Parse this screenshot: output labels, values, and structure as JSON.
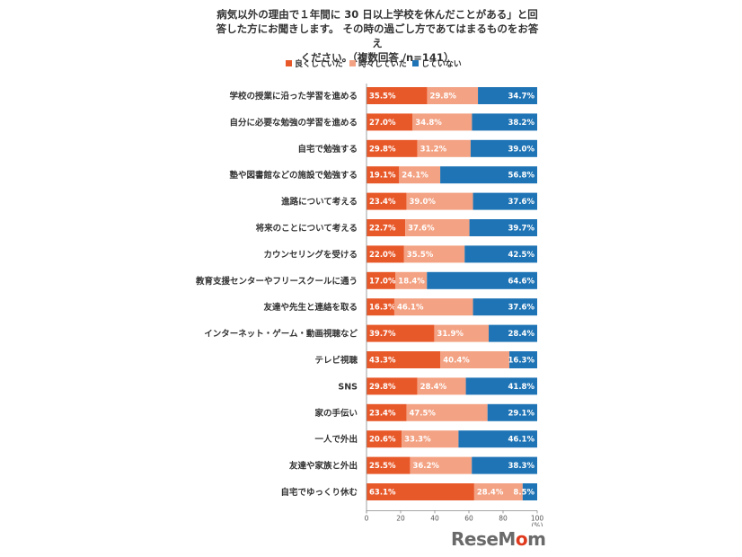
{
  "title_lines": [
    "病気以外の理由で１年間に 30 日以上学校を休んだことがある」と回",
    "答した方にお聞きします。 その時の過ごし方であてはまるものをお答え",
    "ください。（複数回答 /n=141）"
  ],
  "logo": {
    "prefix": "ReseM",
    "accent": "o",
    "suffix": "m"
  },
  "chart_data": {
    "type": "bar",
    "orientation": "horizontal",
    "stacked": true,
    "categories": [
      "学校の授業に沿った学習を進める",
      "自分に必要な勉強の学習を進める",
      "自宅で勉強する",
      "塾や図書館などの施設で勉強する",
      "進路について考える",
      "将来のことについて考える",
      "カウンセリングを受ける",
      "教育支援センターやフリースクールに通う",
      "友達や先生と連絡を取る",
      "インターネット・ゲーム・動画視聴など",
      "テレビ視聴",
      "SNS",
      "家の手伝い",
      "一人で外出",
      "友達や家族と外出",
      "自宅でゆっくり休む"
    ],
    "series": [
      {
        "name": "良くしていた",
        "color": "#e8592a",
        "values": [
          35.5,
          27.0,
          29.8,
          19.1,
          23.4,
          22.7,
          22.0,
          17.0,
          16.3,
          39.7,
          43.3,
          29.8,
          23.4,
          20.6,
          25.5,
          63.1
        ],
        "labels": [
          "35.5%",
          "27.0%",
          "29.8%",
          "19.1%",
          "23.4%",
          "22.7%",
          "22.0%",
          "17.0%",
          "16.3%",
          "39.7%",
          "43.3%",
          "29.8%",
          "23.4%",
          "20.6%",
          "25.5%",
          "63.1%"
        ]
      },
      {
        "name": "時々していた",
        "color": "#f3a283",
        "values": [
          29.8,
          34.8,
          31.2,
          24.1,
          39.0,
          37.6,
          35.5,
          18.4,
          46.1,
          31.9,
          40.4,
          28.4,
          47.5,
          33.3,
          36.2,
          28.4
        ],
        "labels": [
          "29.8%",
          "34.8%",
          "31.2%",
          "24.1%",
          "39.0%",
          "37.6%",
          "35.5%",
          "18.4%",
          "46.1%",
          "31.9%",
          "40.4%",
          "28.4%",
          "47.5%",
          "33.3%",
          "36.2%",
          "28.4%"
        ]
      },
      {
        "name": "していない",
        "color": "#1f74b5",
        "values": [
          34.7,
          38.2,
          39.0,
          56.8,
          37.6,
          39.7,
          42.5,
          64.6,
          37.6,
          28.4,
          16.3,
          41.8,
          29.1,
          46.1,
          38.3,
          8.5
        ],
        "labels": [
          "34.7%",
          "38.2%",
          "39.0%",
          "56.8%",
          "37.6%",
          "39.7%",
          "42.5%",
          "64.6%",
          "37.6%",
          "28.4%",
          "16.3%",
          "41.8%",
          "29.1%",
          "46.1%",
          "38.3%",
          "8.5%"
        ]
      }
    ],
    "xlim": [
      0,
      100
    ],
    "xticks": [
      0,
      20,
      40,
      60,
      80,
      100
    ],
    "xtick_labels": [
      "0",
      "20",
      "40",
      "60",
      "80",
      "100"
    ],
    "unit_label": "(%)",
    "legend_position": "top",
    "grid": false
  }
}
